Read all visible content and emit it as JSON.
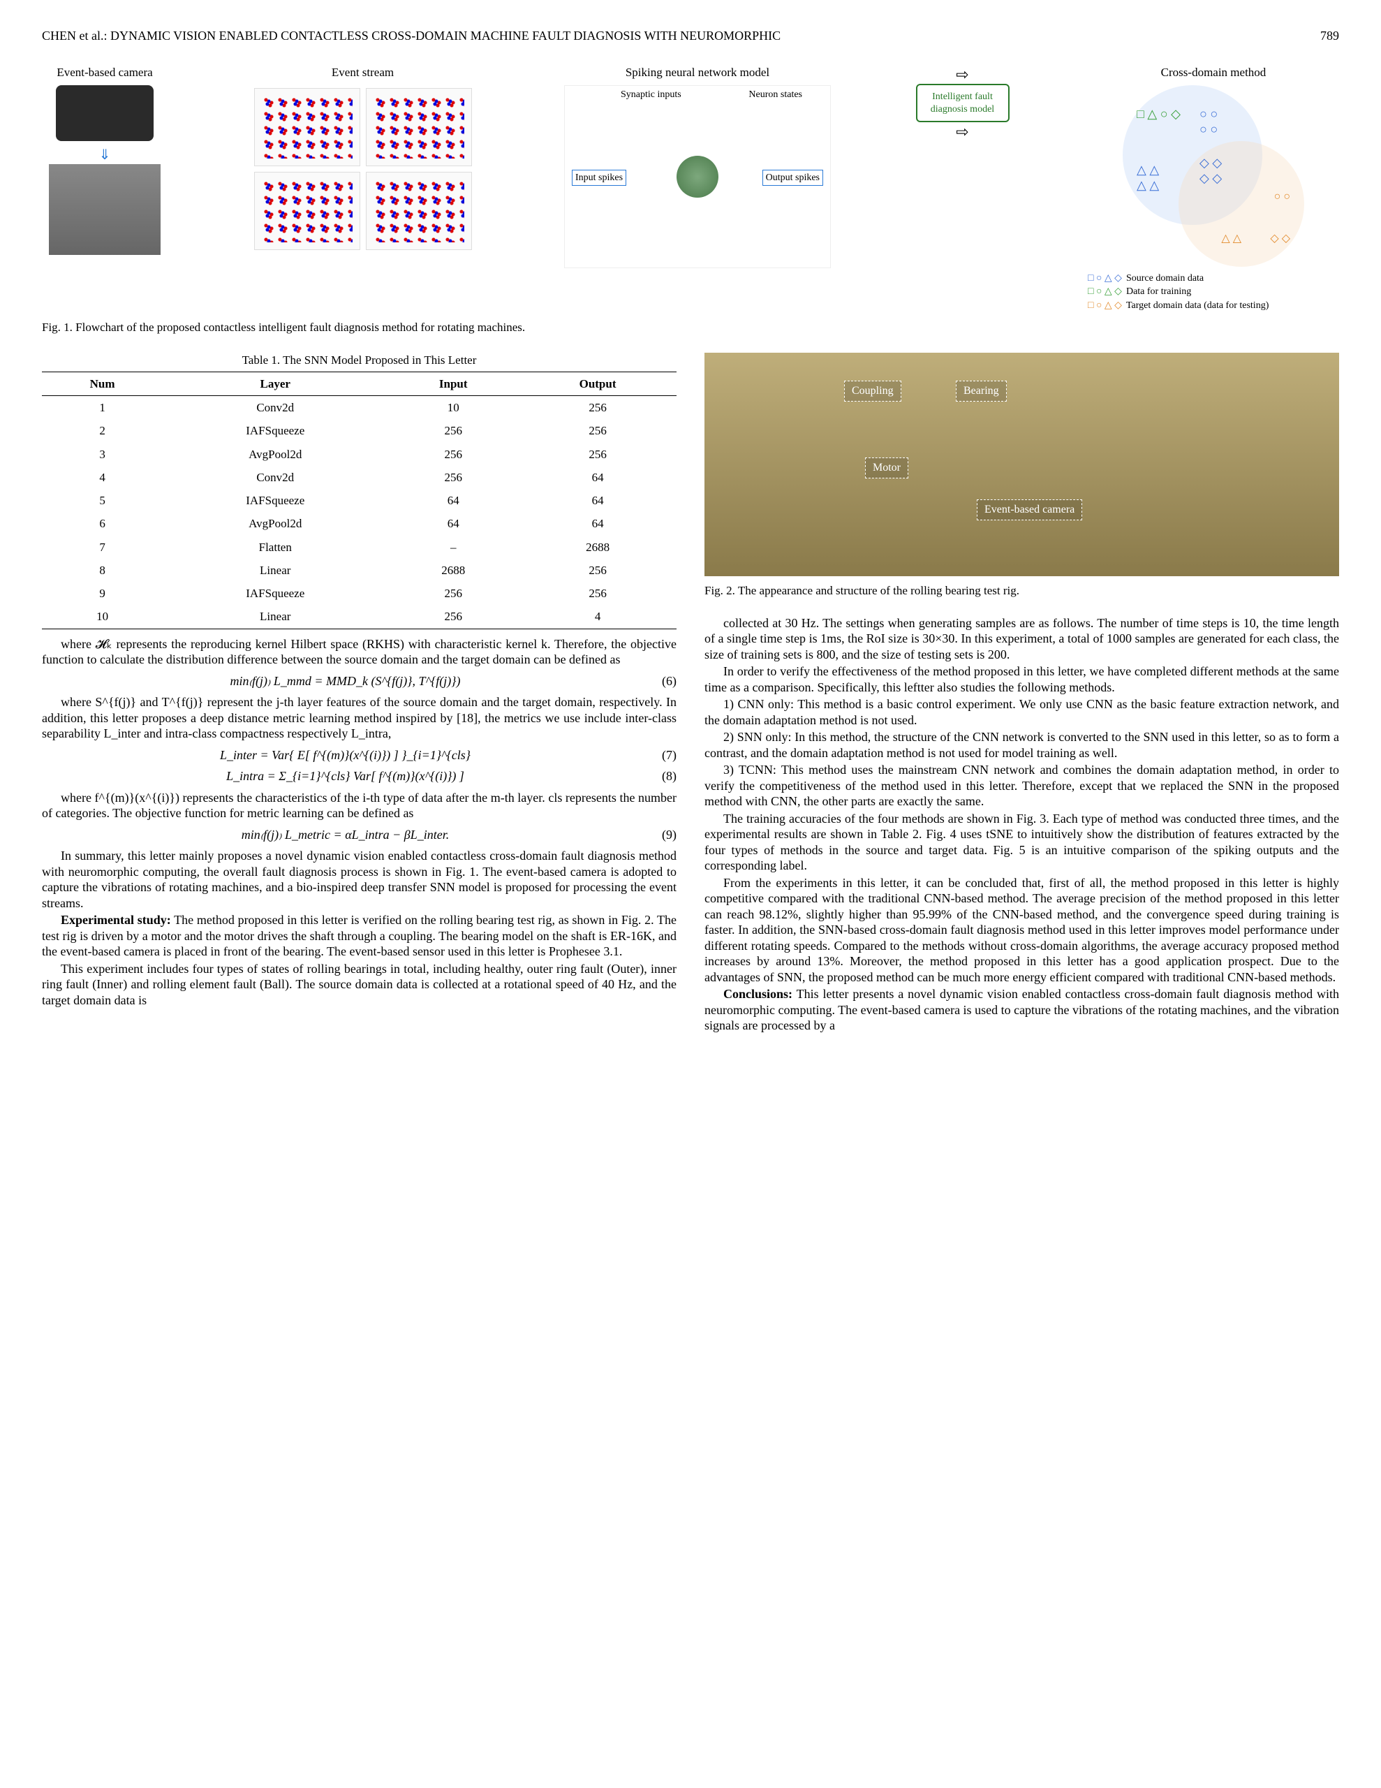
{
  "header": {
    "running": "CHEN et al.: DYNAMIC VISION ENABLED CONTACTLESS CROSS-DOMAIN MACHINE FAULT DIAGNOSIS WITH NEUROMORPHIC",
    "page": "789"
  },
  "fig1": {
    "col1": "Event-based camera",
    "col2": "Event stream",
    "col3": "Spiking neural network model",
    "col4": "Cross-domain method",
    "syn_inputs": "Synaptic inputs",
    "neuron_states": "Neuron states",
    "input_spikes": "Input spikes",
    "output_spikes": "Output spikes",
    "ifd": "Intelligent fault diagnosis model",
    "legend1": "Source domain data",
    "legend2": "Data for training",
    "legend3": "Target domain data (data for testing)",
    "caption": "Fig. 1. Flowchart of the proposed contactless intelligent fault diagnosis method for rotating machines."
  },
  "table1": {
    "caption": "Table 1. The SNN Model Proposed in This Letter",
    "headers": [
      "Num",
      "Layer",
      "Input",
      "Output"
    ],
    "rows": [
      [
        "1",
        "Conv2d",
        "10",
        "256"
      ],
      [
        "2",
        "IAFSqueeze",
        "256",
        "256"
      ],
      [
        "3",
        "AvgPool2d",
        "256",
        "256"
      ],
      [
        "4",
        "Conv2d",
        "256",
        "64"
      ],
      [
        "5",
        "IAFSqueeze",
        "64",
        "64"
      ],
      [
        "6",
        "AvgPool2d",
        "64",
        "64"
      ],
      [
        "7",
        "Flatten",
        "–",
        "2688"
      ],
      [
        "8",
        "Linear",
        "2688",
        "256"
      ],
      [
        "9",
        "IAFSqueeze",
        "256",
        "256"
      ],
      [
        "10",
        "Linear",
        "256",
        "4"
      ]
    ]
  },
  "left": {
    "p1": "where 𝓗ₖ represents the reproducing kernel Hilbert space (RKHS) with characteristic kernel k. Therefore, the objective function to calculate the distribution difference between the source domain and the target domain can be defined as",
    "eq6": "min₍f(j)₎ L_mmd = MMD_k (S^{f(j)}, T^{f(j)})",
    "eq6n": "(6)",
    "p2": "where S^{f(j)} and T^{f(j)} represent the j-th layer features of the source domain and the target domain, respectively. In addition, this letter proposes a deep distance metric learning method inspired by [18], the metrics we use include inter-class separability L_inter and intra-class compactness respectively L_intra,",
    "eq7": "L_inter = Var{ E[ f^{(m)}(x^{(i)}) ] }_{i=1}^{cls}",
    "eq7n": "(7)",
    "eq8": "L_intra = Σ_{i=1}^{cls} Var[ f^{(m)}(x^{(i)}) ]",
    "eq8n": "(8)",
    "p3": "where f^{(m)}(x^{(i)}) represents the characteristics of the i-th type of data after the m-th layer. cls represents the number of categories. The objective function for metric learning can be defined as",
    "eq9": "min₍f(j)₎ L_metric = αL_intra − βL_inter.",
    "eq9n": "(9)",
    "p4": "In summary, this letter mainly proposes a novel dynamic vision enabled contactless cross-domain fault diagnosis method with neuromorphic computing, the overall fault diagnosis process is shown in Fig. 1. The event-based camera is adopted to capture the vibrations of rotating machines, and a bio-inspired deep transfer SNN model is proposed for processing the event streams.",
    "p5a": "Experimental study:",
    "p5b": " The method proposed in this letter is verified on the rolling bearing test rig, as shown in Fig. 2. The test rig is driven by a motor and the motor drives the shaft through a coupling. The bearing model on the shaft is ER-16K, and the event-based camera is placed in front of the bearing. The event-based sensor used in this letter is Prophesee 3.1.",
    "p6": "This experiment includes four types of states of rolling bearings in total, including healthy, outer ring fault (Outer), inner ring fault (Inner) and rolling element fault (Ball). The source domain data is collected at a rotational speed of 40 Hz, and the target domain data is"
  },
  "fig2": {
    "coupling": "Coupling",
    "bearing": "Bearing",
    "motor": "Motor",
    "camera": "Event-based camera",
    "caption": "Fig. 2. The appearance and structure of the rolling bearing test rig."
  },
  "right": {
    "p1": "collected at 30 Hz. The settings when generating samples are as follows. The number of time steps is 10, the time length of a single time step is 1ms, the RoI size is 30×30. In this experiment, a total of 1000 samples are generated for each class, the size of training sets is 800, and the size of testing sets is 200.",
    "p2": "In order to verify the effectiveness of the method proposed in this letter, we have completed different methods at the same time as a comparison. Specifically, this leftter also studies the following methods.",
    "p3": "1) CNN only: This method is a basic control experiment. We only use CNN as the basic feature extraction network, and the domain adaptation method is not used.",
    "p4": "2) SNN only: In this method, the structure of the CNN network is converted to the SNN used in this letter, so as to form a contrast, and the domain adaptation method is not used for model training as well.",
    "p5": "3) TCNN: This method uses the mainstream CNN network and combines the domain adaptation method, in order to verify the competitiveness of the method used in this letter. Therefore, except that we replaced the SNN in the proposed method with CNN, the other parts are exactly the same.",
    "p6": "The training accuracies of the four methods are shown in Fig. 3. Each type of method was conducted three times, and the experimental results are shown in Table 2. Fig. 4 uses tSNE to intuitively show the distribution of features extracted by the four types of methods in the source and target data. Fig. 5 is an intuitive comparison of the spiking outputs and the corresponding label.",
    "p7": "From the experiments in this letter, it can be concluded that, first of all, the method proposed in this letter is highly competitive compared with the traditional CNN-based method. The average precision of the method proposed in this letter can reach 98.12%, slightly higher than 95.99% of the CNN-based method, and the convergence speed during training is faster. In addition, the SNN-based cross-domain fault diagnosis method used in this letter improves model performance under different rotating speeds. Compared to the methods without cross-domain algorithms, the average accuracy proposed method increases by around 13%. Moreover, the method proposed in this letter has a good application prospect. Due to the advantages of SNN, the proposed method can be much more energy efficient compared with traditional CNN-based methods.",
    "p8a": "Conclusions:",
    "p8b": " This letter presents a novel dynamic vision enabled contactless cross-domain fault diagnosis method with neuromorphic computing. The event-based camera is used to capture the vibrations of the rotating machines, and the vibration signals are processed by a"
  },
  "colors": {
    "blue": "#3b6fd6",
    "green": "#3aa03a",
    "orange": "#e28a2b",
    "source_circle": "#bcd3f5",
    "target_circle": "#f5dcc0"
  }
}
